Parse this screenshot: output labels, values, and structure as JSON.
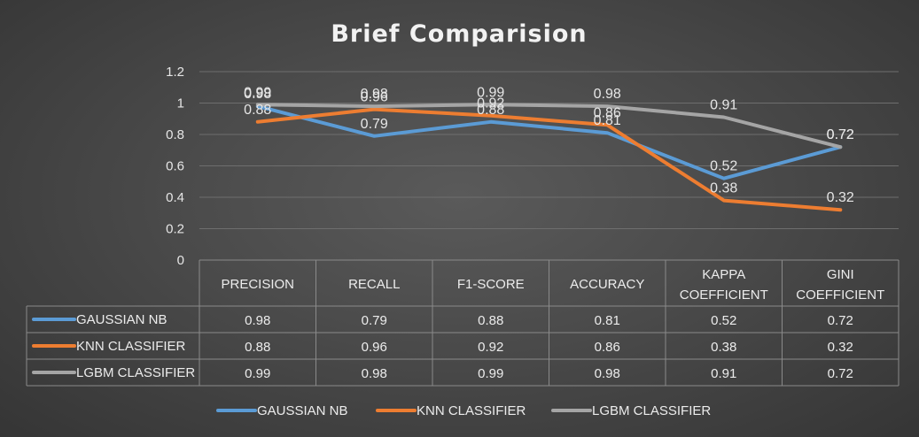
{
  "chart_data": {
    "type": "line",
    "title": "Brief Comparision",
    "categories": [
      [
        "PRECISION"
      ],
      [
        "RECALL"
      ],
      [
        "F1-SCORE"
      ],
      [
        "ACCURACY"
      ],
      [
        "KAPPA",
        "COEFFICIENT"
      ],
      [
        "GINI",
        "COEFFICIENT"
      ]
    ],
    "ylim": [
      0,
      1.2
    ],
    "yticks": [
      "0",
      "0.2",
      "0.4",
      "0.6",
      "0.8",
      "1",
      "1.2"
    ],
    "grid": true,
    "legend": "bottom",
    "data_table": true,
    "series": [
      {
        "name": "GAUSSIAN NB",
        "color": "#5b9bd5",
        "values": [
          0.98,
          0.79,
          0.88,
          0.81,
          0.52,
          0.72
        ],
        "labels": [
          "0.98",
          "0.79",
          "0.88",
          "0.81",
          "0.52",
          "0.72"
        ]
      },
      {
        "name": "KNN CLASSIFIER",
        "color": "#ed7d31",
        "values": [
          0.88,
          0.96,
          0.92,
          0.86,
          0.38,
          0.32
        ],
        "labels": [
          "0.88",
          "0.96",
          "0.92",
          "0.86",
          "0.38",
          "0.32"
        ]
      },
      {
        "name": "LGBM CLASSIFIER",
        "color": "#a5a5a5",
        "values": [
          0.99,
          0.98,
          0.99,
          0.98,
          0.91,
          0.72
        ],
        "labels": [
          "0.99",
          "0.98",
          "0.99",
          "0.98",
          "0.91",
          "0.72"
        ]
      }
    ]
  }
}
